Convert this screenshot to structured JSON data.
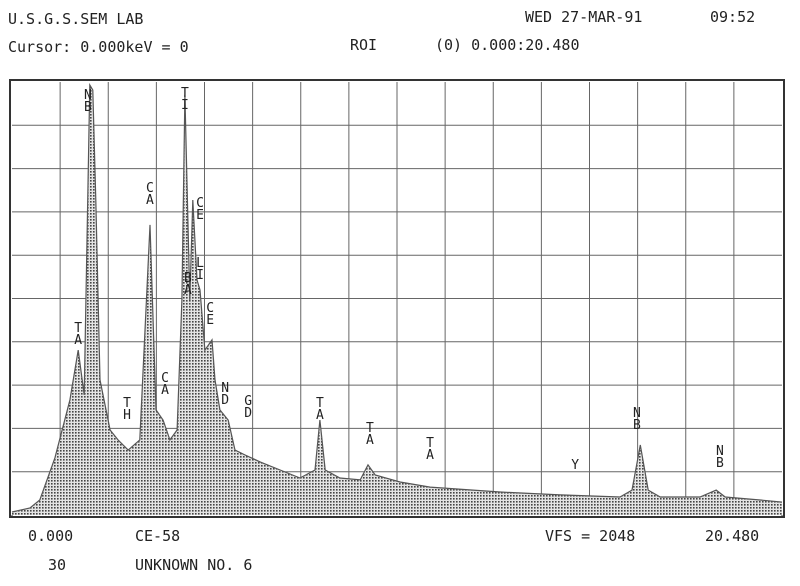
{
  "chart_data": {
    "type": "area",
    "title": "U.S.G.S.SEM LAB",
    "date": "WED 27-MAR-91",
    "time": "09:52",
    "cursor": "Cursor: 0.000keV = 0",
    "roi_label": "ROI",
    "roi": "(0) 0.000:20.480",
    "sample": "CE-58",
    "vfs": "VFS = 2048",
    "live_time": "30",
    "description": "UNKNOWN NO. 6",
    "x": [
      0.0,
      0.48,
      0.74,
      1.14,
      1.54,
      1.76,
      1.92,
      2.07,
      2.15,
      2.23,
      2.34,
      2.61,
      2.82,
      3.09,
      3.4,
      3.67,
      3.83,
      4.02,
      4.2,
      4.39,
      4.52,
      4.6,
      4.73,
      4.81,
      4.92,
      5.0,
      5.13,
      5.32,
      5.4,
      5.53,
      5.75,
      5.93,
      6.2,
      6.6,
      7.13,
      7.66,
      8.06,
      8.19,
      8.33,
      8.72,
      9.26,
      9.47,
      9.66,
      10.32,
      11.12,
      12.98,
      14.58,
      16.17,
      16.49,
      16.71,
      16.92,
      17.24,
      18.3,
      18.73,
      18.97,
      19.9,
      20.48
    ],
    "values": [
      14,
      33,
      71,
      270,
      544,
      780,
      568,
      2034,
      2010,
      1490,
      639,
      402,
      355,
      307,
      355,
      1372,
      497,
      449,
      355,
      402,
      1017,
      1987,
      1017,
      1490,
      1112,
      1064,
      780,
      828,
      639,
      497,
      449,
      307,
      284,
      251,
      213,
      175,
      213,
      449,
      213,
      175,
      166,
      237,
      189,
      156,
      132,
      109,
      95,
      85,
      118,
      331,
      118,
      85,
      85,
      118,
      85,
      71,
      61
    ],
    "color": "#555555",
    "xlim": [
      0,
      20.48
    ],
    "ylim": [
      0,
      2048
    ],
    "xticks": [
      {
        "value": 0,
        "label": "0.000"
      },
      {
        "value": 20.48,
        "label": "20.480"
      }
    ],
    "grid": true,
    "grid_columns": 16,
    "grid_rows": 10,
    "annotations": [
      {
        "text": "TA",
        "x": 1.76,
        "y": 804
      },
      {
        "text": "NB",
        "x": 2.02,
        "y": 1906
      },
      {
        "text": "TH",
        "x": 3.06,
        "y": 449
      },
      {
        "text": "CA",
        "x": 3.67,
        "y": 1466
      },
      {
        "text": "CA",
        "x": 4.07,
        "y": 568
      },
      {
        "text": "TI",
        "x": 4.6,
        "y": 1916
      },
      {
        "text": "CE",
        "x": 5.0,
        "y": 1395
      },
      {
        "text": "LI",
        "x": 5.0,
        "y": 1112
      },
      {
        "text": "BA",
        "x": 4.68,
        "y": 1040
      },
      {
        "text": "CE",
        "x": 5.27,
        "y": 899
      },
      {
        "text": "ND",
        "x": 5.67,
        "y": 520
      },
      {
        "text": "GD",
        "x": 6.28,
        "y": 459
      },
      {
        "text": "TA",
        "x": 8.19,
        "y": 449
      },
      {
        "text": "TA",
        "x": 9.52,
        "y": 331
      },
      {
        "text": "TA",
        "x": 11.12,
        "y": 260
      },
      {
        "text": "Y",
        "x": 14.98,
        "y": 213
      },
      {
        "text": "NB",
        "x": 16.62,
        "y": 402
      },
      {
        "text": "NB",
        "x": 18.83,
        "y": 222
      }
    ]
  }
}
